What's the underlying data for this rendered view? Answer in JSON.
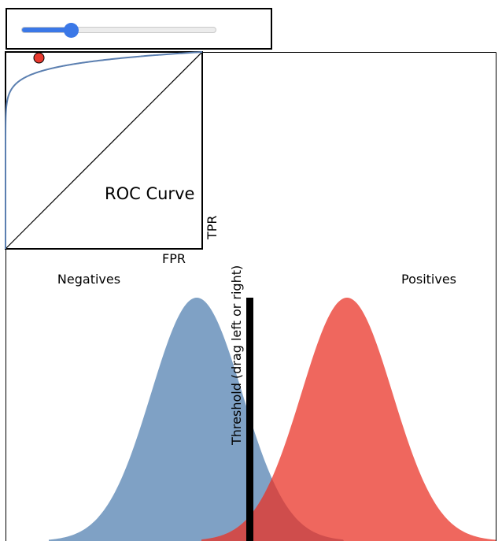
{
  "threshold_control": {
    "value": 0.25,
    "min": 0,
    "max": 1,
    "accent": "#3b78e7"
  },
  "roc": {
    "title": "ROC Curve",
    "xlabel": "FPR",
    "ylabel": "TPR",
    "point": {
      "fpr": 0.17,
      "tpr": 0.97
    },
    "curve_color": "#5b7fb0",
    "point_color": "#e8392e"
  },
  "distributions": {
    "negatives_label": "Negatives",
    "positives_label": "Positives",
    "threshold_label": "Threshold (drag left or right)",
    "negatives_color": "#7fa1c5",
    "positives_color": "#ef675e",
    "overlap_color": "#cf4d4c"
  }
}
